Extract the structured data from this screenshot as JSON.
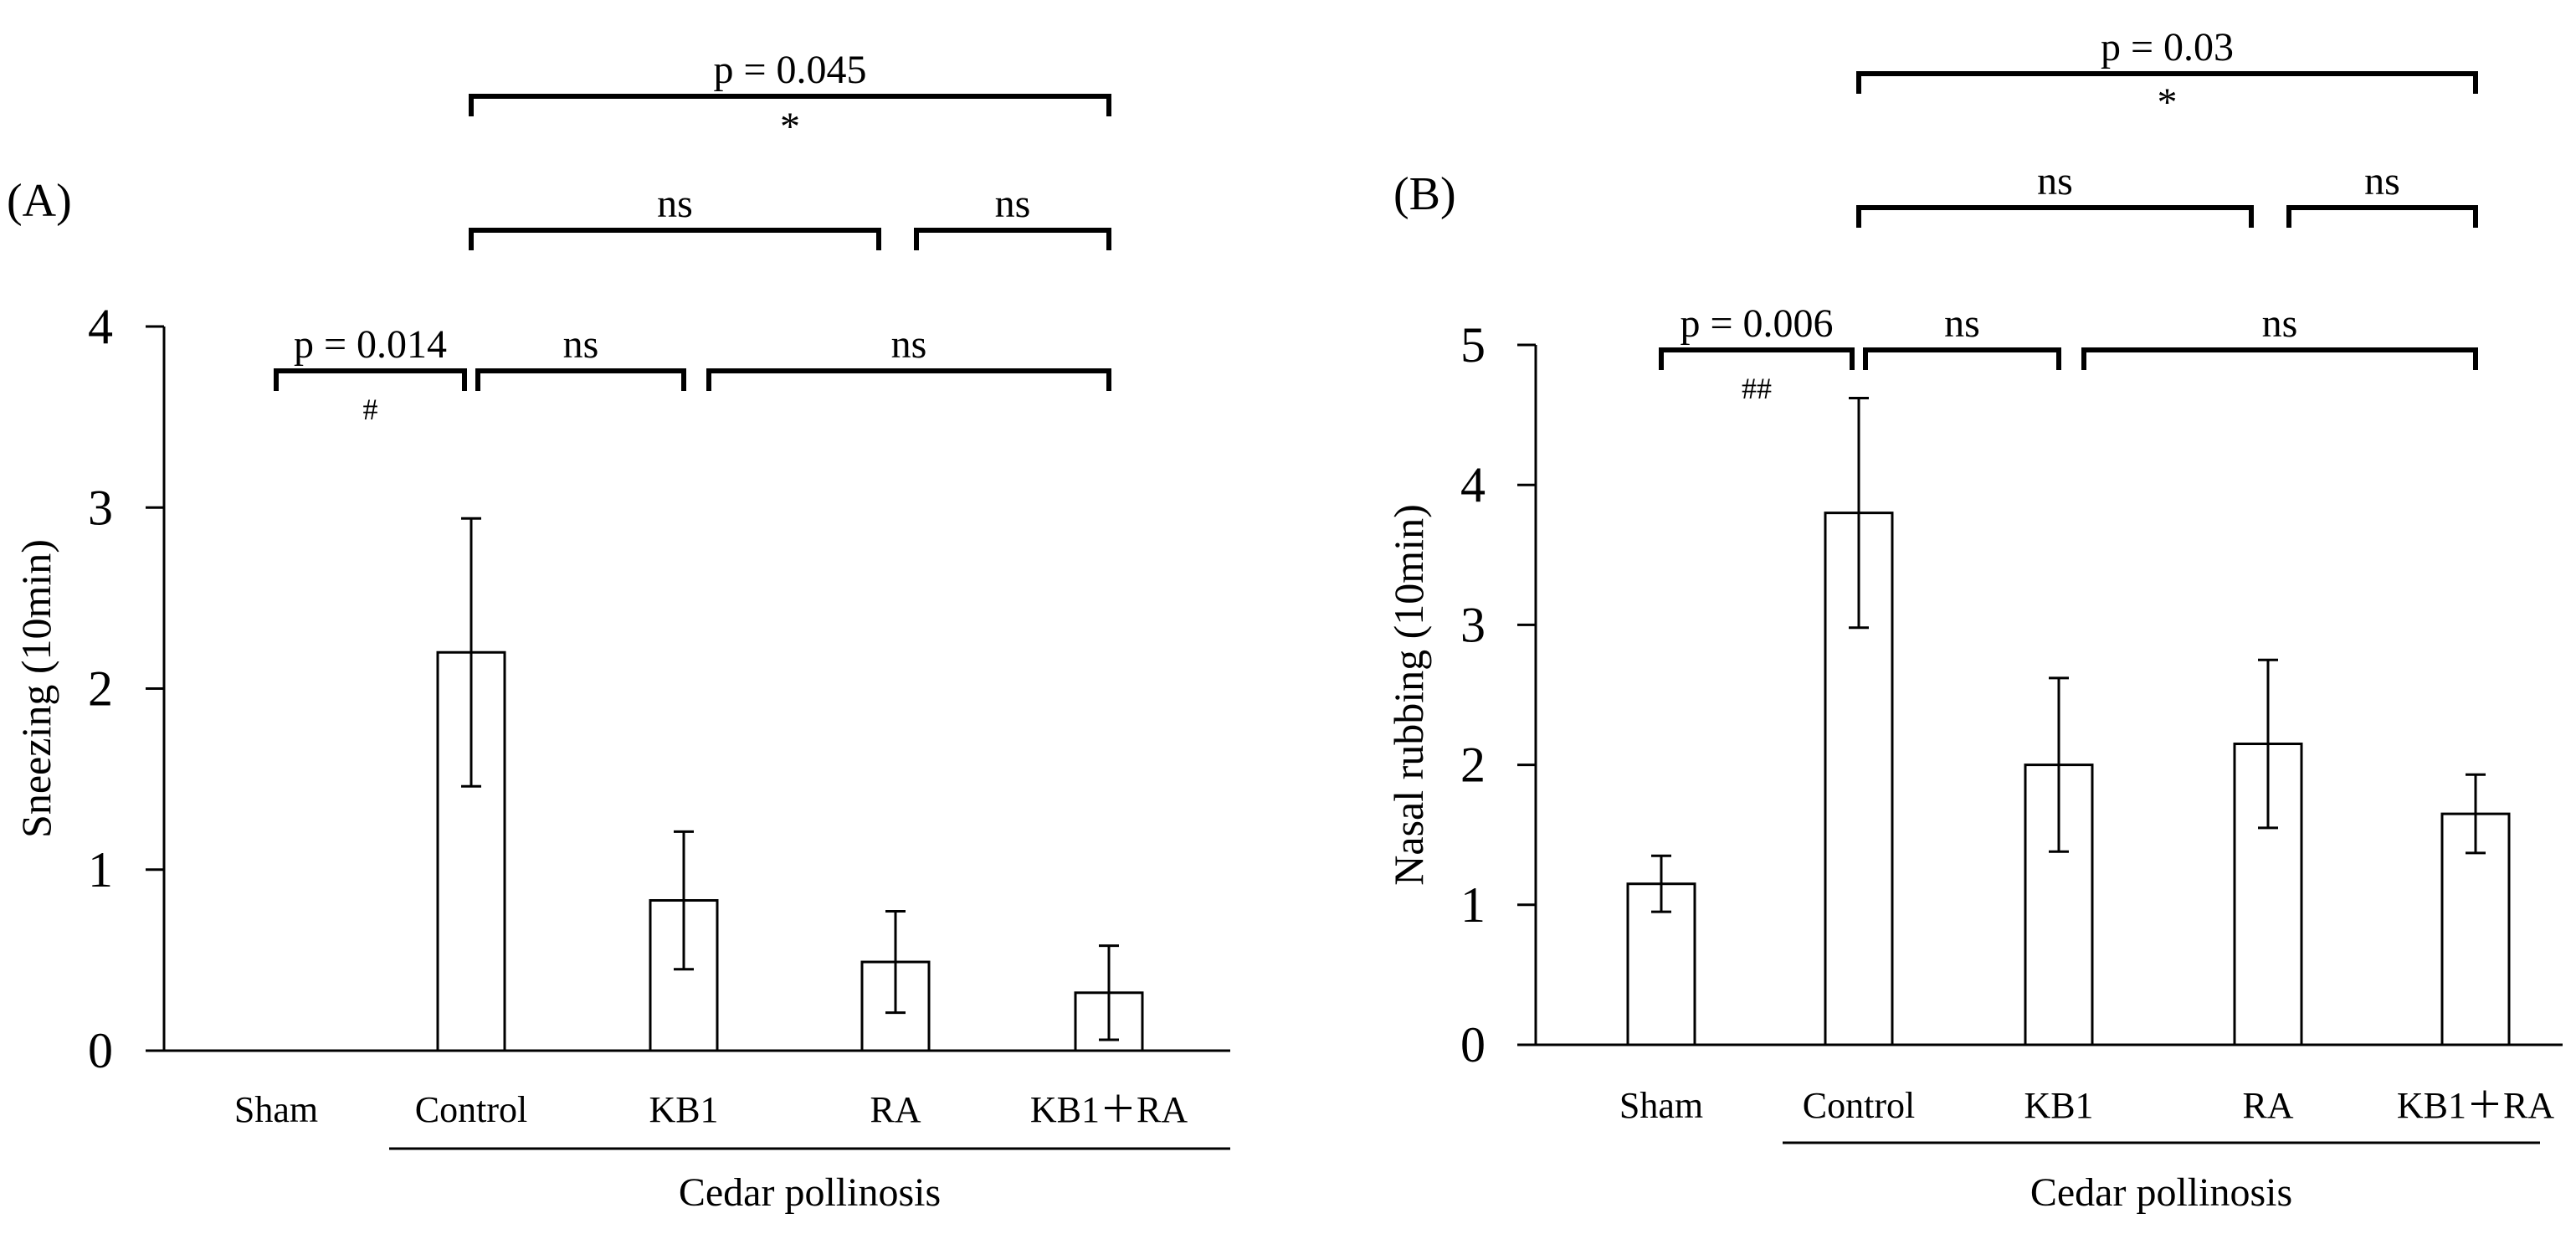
{
  "chart_data": [
    {
      "panel_label": "(A)",
      "type": "bar",
      "categories": [
        "Sham",
        "Control",
        "KB1",
        "RA",
        "KB1＋RA"
      ],
      "values": [
        0,
        2.2,
        0.83,
        0.49,
        0.32
      ],
      "errors": [
        0,
        0.74,
        0.38,
        0.28,
        0.26
      ],
      "ylabel": "Sneezing (10min)",
      "xlabel": "",
      "ylim": [
        0,
        4
      ],
      "yticks": [
        "0",
        "1",
        "2",
        "3",
        "4"
      ],
      "group_label": "Cedar pollinosis",
      "brackets": [
        {
          "from": 0,
          "to": 1,
          "label": "p = 0.014",
          "sublabel": "#"
        },
        {
          "from": 1,
          "to": 2,
          "label": "ns",
          "sublabel": ""
        },
        {
          "from": 2,
          "to": 4,
          "label": "ns",
          "sublabel": ""
        },
        {
          "from": 1,
          "to": 3,
          "label": "ns",
          "sublabel": ""
        },
        {
          "from": 3,
          "to": 4,
          "label": "ns",
          "sublabel": ""
        },
        {
          "from": 1,
          "to": 4,
          "label": "p = 0.045",
          "sublabel": "*"
        }
      ]
    },
    {
      "panel_label": "(B)",
      "type": "bar",
      "categories": [
        "Sham",
        "Control",
        "KB1",
        "RA",
        "KB1＋RA"
      ],
      "values": [
        1.15,
        3.8,
        2.0,
        2.15,
        1.65
      ],
      "errors": [
        0.2,
        0.82,
        0.62,
        0.6,
        0.28
      ],
      "ylabel": "Nasal rubbing (10min)",
      "xlabel": "",
      "ylim": [
        0,
        5
      ],
      "yticks": [
        "0",
        "1",
        "2",
        "3",
        "4",
        "5"
      ],
      "group_label": "Cedar pollinosis",
      "brackets": [
        {
          "from": 0,
          "to": 1,
          "label": "p = 0.006",
          "sublabel": "##"
        },
        {
          "from": 1,
          "to": 2,
          "label": "ns",
          "sublabel": ""
        },
        {
          "from": 2,
          "to": 4,
          "label": "ns",
          "sublabel": ""
        },
        {
          "from": 1,
          "to": 3,
          "label": "ns",
          "sublabel": ""
        },
        {
          "from": 3,
          "to": 4,
          "label": "ns",
          "sublabel": ""
        },
        {
          "from": 1,
          "to": 4,
          "label": "p = 0.03",
          "sublabel": "*"
        }
      ]
    }
  ]
}
